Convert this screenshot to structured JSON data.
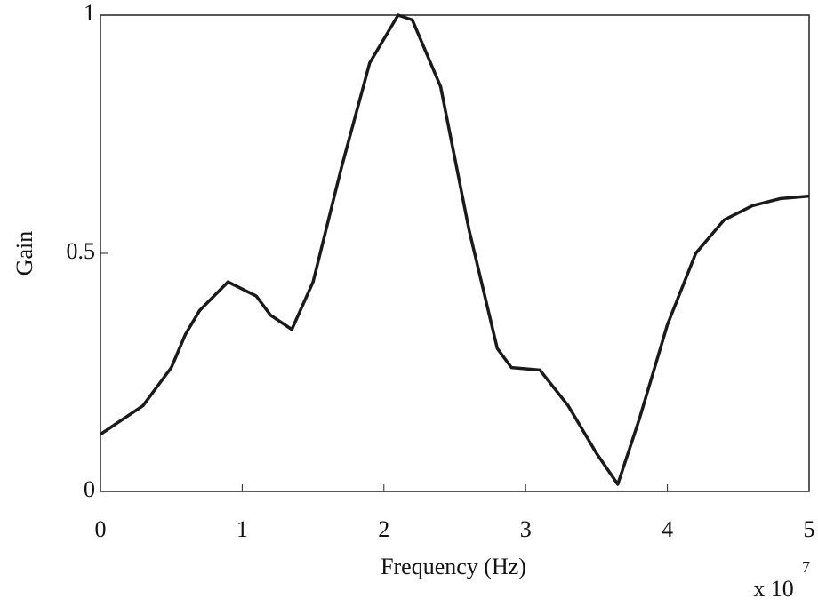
{
  "chart_data": {
    "type": "line",
    "x_label": "Frequency (Hz)",
    "y_label": "Gain",
    "x_multiplier": "x 10",
    "x_multiplier_exponent": "7",
    "x": [
      0,
      0.3,
      0.5,
      0.6,
      0.7,
      0.9,
      1.1,
      1.2,
      1.35,
      1.5,
      1.7,
      1.9,
      2.1,
      2.2,
      2.4,
      2.6,
      2.8,
      2.9,
      3.1,
      3.3,
      3.5,
      3.65,
      3.8,
      4.0,
      4.2,
      4.4,
      4.6,
      4.8,
      5.0
    ],
    "series": [
      {
        "color": "#1a1a1a",
        "values": [
          0.12,
          0.18,
          0.26,
          0.33,
          0.38,
          0.44,
          0.41,
          0.37,
          0.34,
          0.44,
          0.68,
          0.9,
          1.0,
          0.99,
          0.85,
          0.55,
          0.3,
          0.26,
          0.255,
          0.18,
          0.08,
          0.015,
          0.15,
          0.35,
          0.5,
          0.57,
          0.6,
          0.615,
          0.62
        ]
      }
    ],
    "xlim": [
      0,
      5
    ],
    "ylim": [
      0,
      1
    ],
    "xticks": [
      0,
      1,
      2,
      3,
      4,
      5
    ],
    "yticks": [
      0,
      0.5,
      1
    ],
    "grid": false
  }
}
